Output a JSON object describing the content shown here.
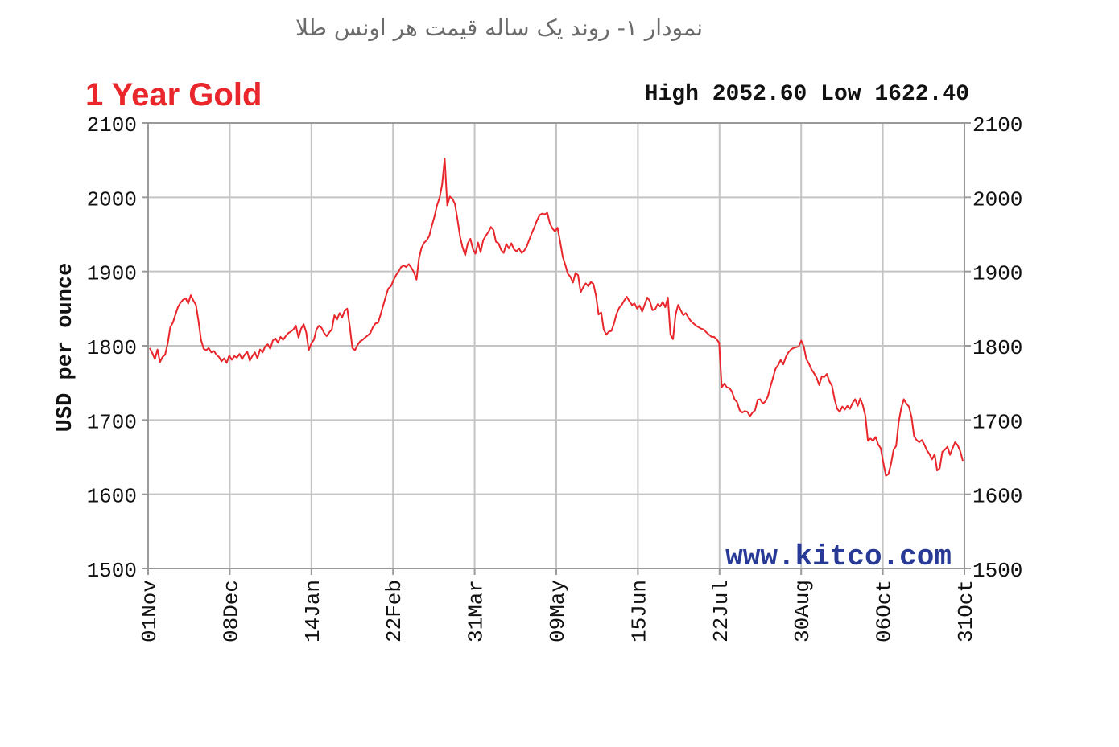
{
  "caption": "نمودار ۱- روند یک ساله قیمت هر اونس طلا",
  "watermark": "www.kitco.com",
  "colors": {
    "title": "#e8262b",
    "line": "#e8262b",
    "grid": "#c4c4c4",
    "axis": "#9a9a9a",
    "watermark": "#283a96",
    "text": "#111111"
  },
  "chart_data": {
    "type": "line",
    "title": "1 Year Gold",
    "stats": {
      "high_label": "High",
      "high": "2052.60",
      "low_label": "Low",
      "low": "1622.40"
    },
    "ylabel": "USD per ounce",
    "xlabel": "",
    "ylim": [
      1500,
      2100
    ],
    "yticks": [
      2100,
      2000,
      1900,
      1800,
      1700,
      1600,
      1500
    ],
    "xticks": [
      "01Nov",
      "08Dec",
      "14Jan",
      "22Feb",
      "31Mar",
      "09May",
      "15Jun",
      "22Jul",
      "30Aug",
      "06Oct",
      "31Oct"
    ],
    "grid": true,
    "series": [
      {
        "values": [
          1797,
          1790,
          1782,
          1795,
          1778,
          1785,
          1788,
          1803,
          1825,
          1831,
          1842,
          1852,
          1858,
          1862,
          1864,
          1857,
          1868,
          1861,
          1855,
          1834,
          1808,
          1796,
          1794,
          1797,
          1791,
          1793,
          1788,
          1785,
          1779,
          1783,
          1777,
          1787,
          1781,
          1786,
          1784,
          1789,
          1782,
          1788,
          1792,
          1780,
          1786,
          1791,
          1783,
          1795,
          1791,
          1799,
          1802,
          1796,
          1807,
          1810,
          1804,
          1812,
          1808,
          1813,
          1817,
          1819,
          1822,
          1827,
          1811,
          1823,
          1829,
          1818,
          1794,
          1803,
          1808,
          1822,
          1827,
          1824,
          1817,
          1813,
          1818,
          1822,
          1841,
          1835,
          1844,
          1838,
          1847,
          1850,
          1826,
          1797,
          1794,
          1801,
          1806,
          1808,
          1811,
          1814,
          1817,
          1825,
          1830,
          1831,
          1842,
          1854,
          1866,
          1877,
          1880,
          1888,
          1895,
          1900,
          1906,
          1908,
          1906,
          1910,
          1905,
          1899,
          1889,
          1918,
          1932,
          1939,
          1942,
          1948,
          1962,
          1974,
          1989,
          1999,
          2017,
          2052,
          1989,
          2001,
          1998,
          1991,
          1970,
          1947,
          1932,
          1922,
          1938,
          1944,
          1930,
          1924,
          1939,
          1926,
          1942,
          1948,
          1953,
          1960,
          1956,
          1940,
          1938,
          1929,
          1925,
          1937,
          1931,
          1938,
          1930,
          1927,
          1931,
          1925,
          1928,
          1934,
          1943,
          1952,
          1960,
          1969,
          1976,
          1978,
          1977,
          1979,
          1965,
          1958,
          1954,
          1959,
          1940,
          1920,
          1909,
          1897,
          1893,
          1885,
          1898,
          1895,
          1872,
          1879,
          1884,
          1880,
          1886,
          1883,
          1867,
          1842,
          1845,
          1822,
          1815,
          1819,
          1820,
          1830,
          1843,
          1851,
          1855,
          1861,
          1866,
          1860,
          1855,
          1857,
          1850,
          1854,
          1846,
          1856,
          1865,
          1860,
          1848,
          1849,
          1856,
          1853,
          1859,
          1852,
          1865,
          1815,
          1809,
          1842,
          1855,
          1848,
          1841,
          1844,
          1838,
          1833,
          1830,
          1827,
          1825,
          1823,
          1822,
          1818,
          1815,
          1812,
          1812,
          1809,
          1804,
          1744,
          1749,
          1744,
          1743,
          1738,
          1728,
          1724,
          1713,
          1710,
          1712,
          1711,
          1705,
          1710,
          1713,
          1727,
          1728,
          1722,
          1725,
          1732,
          1745,
          1757,
          1769,
          1774,
          1781,
          1775,
          1785,
          1791,
          1795,
          1797,
          1798,
          1799,
          1807,
          1799,
          1782,
          1776,
          1768,
          1763,
          1757,
          1747,
          1759,
          1758,
          1762,
          1752,
          1746,
          1728,
          1715,
          1711,
          1718,
          1714,
          1719,
          1715,
          1723,
          1728,
          1719,
          1729,
          1720,
          1706,
          1672,
          1675,
          1672,
          1677,
          1667,
          1662,
          1643,
          1625,
          1627,
          1641,
          1660,
          1665,
          1697,
          1716,
          1728,
          1722,
          1718,
          1704,
          1678,
          1673,
          1670,
          1673,
          1667,
          1659,
          1654,
          1647,
          1654,
          1632,
          1635,
          1657,
          1660,
          1664,
          1653,
          1662,
          1670,
          1666,
          1658,
          1645
        ]
      }
    ]
  }
}
